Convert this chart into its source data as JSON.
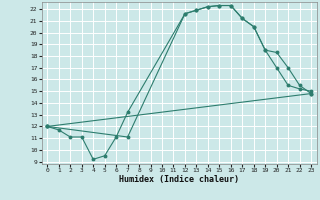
{
  "xlabel": "Humidex (Indice chaleur)",
  "bg_color": "#cce8e8",
  "grid_color": "#ffffff",
  "line_color": "#2d7d6e",
  "xlim": [
    -0.5,
    23.5
  ],
  "ylim": [
    8.8,
    22.6
  ],
  "xticks": [
    0,
    1,
    2,
    3,
    4,
    5,
    6,
    7,
    8,
    9,
    10,
    11,
    12,
    13,
    14,
    15,
    16,
    17,
    18,
    19,
    20,
    21,
    22,
    23
  ],
  "yticks": [
    9,
    10,
    11,
    12,
    13,
    14,
    15,
    16,
    17,
    18,
    19,
    20,
    21,
    22
  ],
  "line1_x": [
    0,
    1,
    2,
    3,
    4,
    5,
    6,
    7,
    12,
    13,
    14,
    15,
    16,
    17,
    18,
    19,
    20,
    21,
    22,
    23
  ],
  "line1_y": [
    12,
    11.7,
    11.1,
    11.1,
    9.2,
    9.5,
    11.1,
    13.2,
    21.6,
    21.9,
    22.2,
    22.3,
    22.3,
    21.2,
    20.5,
    18.5,
    17.0,
    15.5,
    15.2,
    15.0
  ],
  "line2_x": [
    0,
    7,
    12,
    13,
    14,
    15,
    16,
    17,
    18,
    19,
    20,
    21,
    22,
    23
  ],
  "line2_y": [
    12,
    11.1,
    21.6,
    21.9,
    22.2,
    22.3,
    22.3,
    21.2,
    20.5,
    18.5,
    18.3,
    17.0,
    15.5,
    14.8
  ],
  "line3_x": [
    0,
    23
  ],
  "line3_y": [
    12,
    14.8
  ]
}
